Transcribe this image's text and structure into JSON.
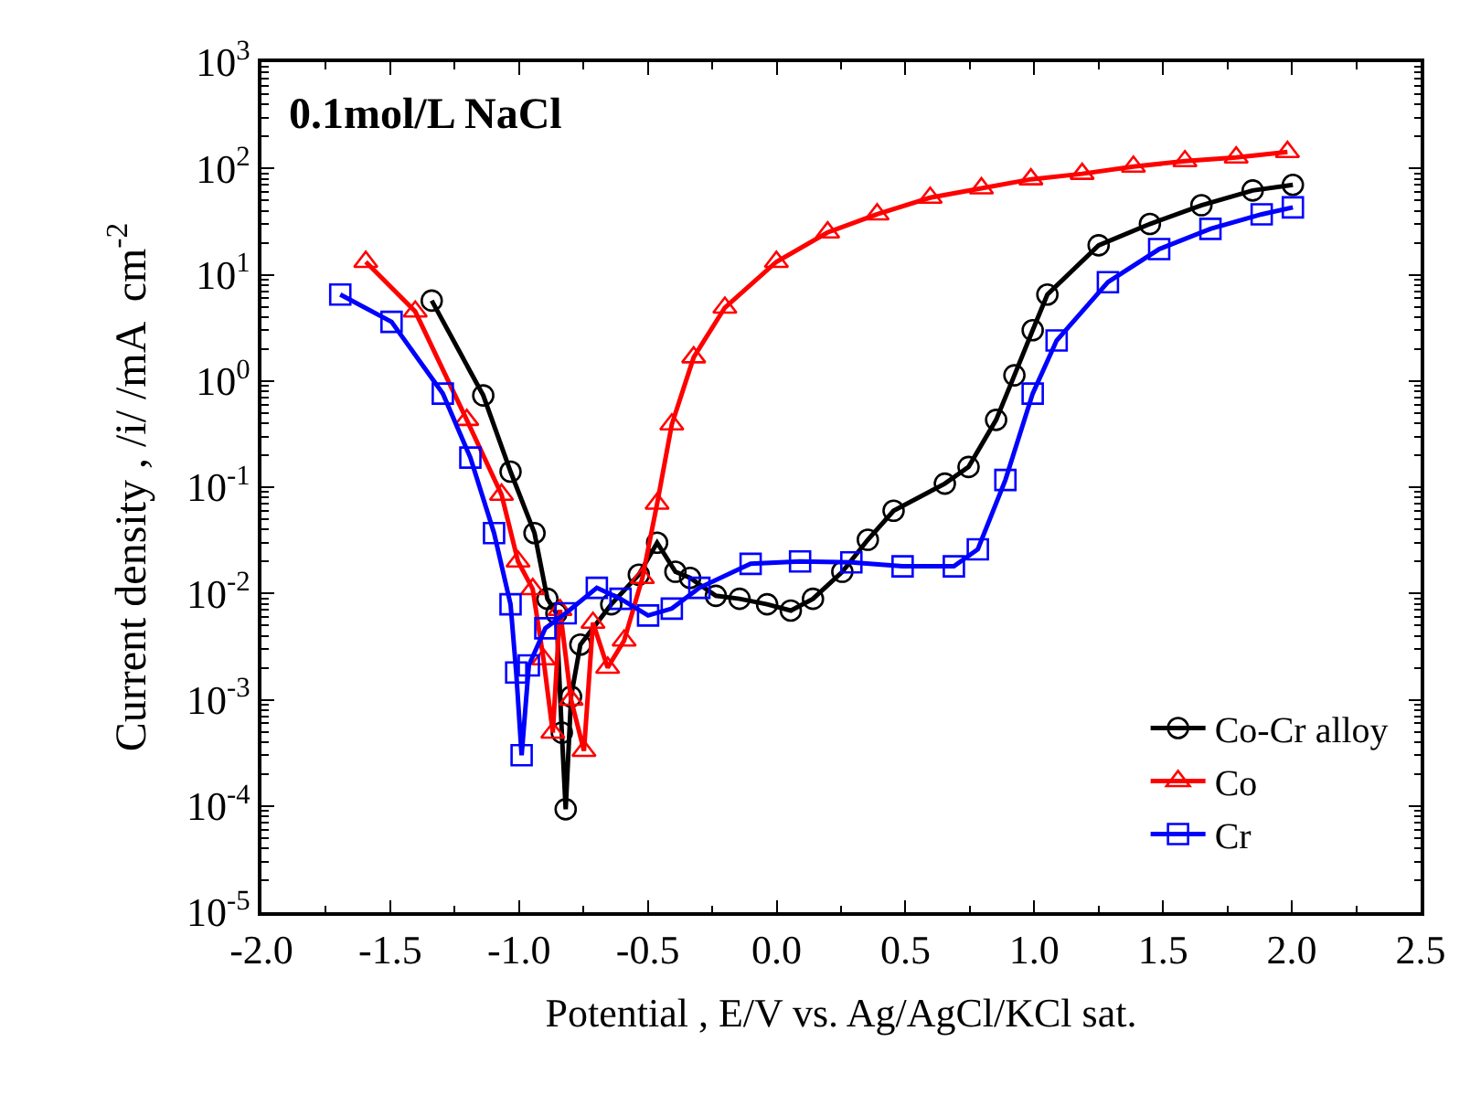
{
  "chart_data": {
    "type": "line",
    "xlabel": "Potential , E/V vs. Ag/AgCl/KCl sat.",
    "ylabel": "Current density , /i/ /mA  cm$^{-2}$",
    "annotations": [
      "0.1mol/L NaCl"
    ],
    "log": "y",
    "legend": "bottom right",
    "line_style": "solid",
    "xlim": [
      -2.0,
      2.5
    ],
    "xticks": [
      {
        "value": -2,
        "label": "-2.0"
      },
      {
        "value": -1.5,
        "label": "-1.5"
      },
      {
        "value": -1,
        "label": "-1.0"
      },
      {
        "value": -0.5,
        "label": "-0.5"
      },
      {
        "value": 0,
        "label": "0.0"
      },
      {
        "value": 0.5,
        "label": "0.5"
      },
      {
        "value": 1,
        "label": "1.0"
      },
      {
        "value": 1.5,
        "label": "1.5"
      },
      {
        "value": 2,
        "label": "2.0"
      },
      {
        "value": 2.5,
        "label": "2.5"
      }
    ],
    "ylim": [
      1e-05,
      1000
    ],
    "yticks": [
      {
        "value": 1e-05,
        "label": "10$^{-5}$"
      },
      {
        "value": 0.0001,
        "label": "10$^{-4}$"
      },
      {
        "value": 0.001,
        "label": "10$^{-3}$"
      },
      {
        "value": 0.01,
        "label": "10$^{-2}$"
      },
      {
        "value": 0.1,
        "label": "10$^{-1}$"
      },
      {
        "value": 1,
        "label": "10$^{0}$"
      },
      {
        "value": 10,
        "label": "10$^{1}$"
      },
      {
        "value": 100,
        "label": "10$^{2}$"
      },
      {
        "value": 1000,
        "label": "10$^{3}$"
      }
    ],
    "series": [
      {
        "name": "Co-Cr alloy",
        "color": "#000000",
        "marker": "circle",
        "x": [
          -1.339,
          -1.139,
          -1.033,
          -0.94,
          -0.89,
          -0.855,
          -0.834,
          -0.819,
          -0.798,
          -0.762,
          -0.642,
          -0.535,
          -0.464,
          -0.393,
          -0.336,
          -0.236,
          -0.144,
          -0.037,
          0.055,
          0.141,
          0.255,
          0.354,
          0.454,
          0.653,
          0.745,
          0.852,
          0.923,
          0.994,
          1.051,
          1.25,
          1.449,
          1.649,
          1.848,
          2.004
        ],
        "values": [
          5.7,
          0.73,
          0.14,
          0.037,
          0.0089,
          0.0065,
          0.00049,
          9.3e-05,
          0.00107,
          0.0033,
          0.0079,
          0.015,
          0.03,
          0.016,
          0.014,
          0.0095,
          0.0089,
          0.0079,
          0.0069,
          0.0089,
          0.016,
          0.032,
          0.06,
          0.108,
          0.155,
          0.43,
          1.13,
          3.0,
          6.5,
          18.9,
          30,
          45,
          62,
          70
        ]
      },
      {
        "name": "Co",
        "color": "#ff0000",
        "marker": "triangle",
        "x": [
          -1.595,
          -1.403,
          -1.203,
          -1.068,
          -1.004,
          -0.947,
          -0.905,
          -0.869,
          -0.841,
          -0.798,
          -0.748,
          -0.713,
          -0.656,
          -0.592,
          -0.521,
          -0.464,
          -0.407,
          -0.322,
          -0.201,
          -0.001,
          0.198,
          0.39,
          0.596,
          0.795,
          0.987,
          1.186,
          1.385,
          1.585,
          1.784,
          1.983
        ],
        "values": [
          13.2,
          4.5,
          0.43,
          0.085,
          0.02,
          0.011,
          0.0024,
          0.00049,
          0.007,
          0.001,
          0.00033,
          0.0053,
          0.002,
          0.0036,
          0.014,
          0.07,
          0.39,
          1.67,
          4.9,
          13.2,
          25,
          37,
          53,
          65,
          79,
          89,
          104,
          117,
          127,
          143
        ]
      },
      {
        "name": "Cr",
        "color": "#0000ff",
        "marker": "square",
        "x": [
          -1.694,
          -1.495,
          -1.296,
          -1.189,
          -1.097,
          -1.033,
          -1.011,
          -0.99,
          -0.962,
          -0.898,
          -0.819,
          -0.698,
          -0.606,
          -0.499,
          -0.407,
          -0.3,
          -0.101,
          0.091,
          0.29,
          0.489,
          0.688,
          0.781,
          0.888,
          0.994,
          1.087,
          1.286,
          1.485,
          1.684,
          1.883,
          2.004
        ],
        "values": [
          6.5,
          3.6,
          0.76,
          0.19,
          0.037,
          0.0079,
          0.0018,
          0.0003,
          0.0021,
          0.0047,
          0.0065,
          0.0113,
          0.0089,
          0.0062,
          0.0072,
          0.0113,
          0.019,
          0.02,
          0.0196,
          0.018,
          0.018,
          0.026,
          0.117,
          0.76,
          2.4,
          8.5,
          17.4,
          27,
          37,
          43
        ]
      }
    ]
  }
}
